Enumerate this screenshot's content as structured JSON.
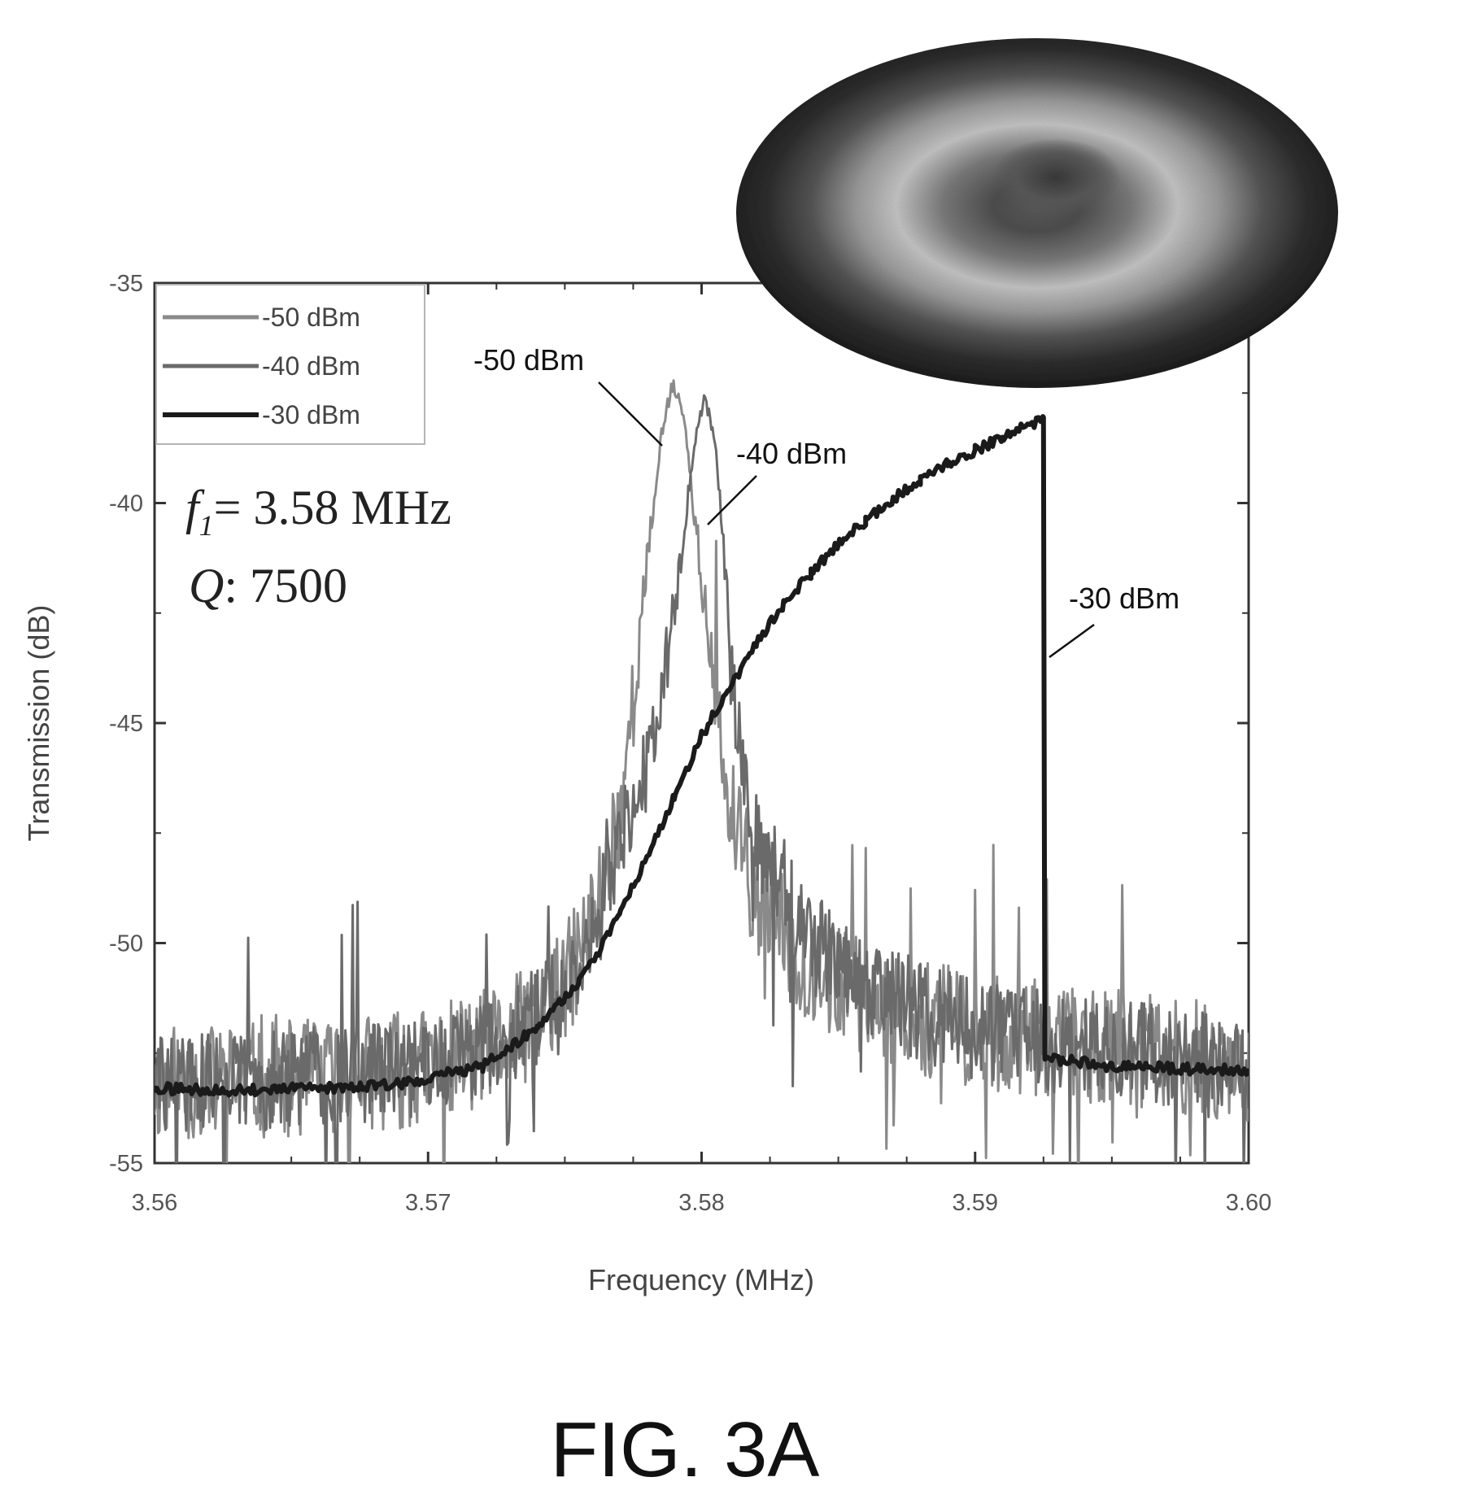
{
  "chart_data": {
    "type": "line",
    "xlabel": "Frequency (MHz)",
    "ylabel": "Transmission (dB)",
    "xlim": [
      3.56,
      3.6
    ],
    "ylim": [
      -55,
      -35
    ],
    "x_ticks": [
      3.56,
      3.57,
      3.58,
      3.59,
      3.6
    ],
    "x_tick_labels": [
      "3.56",
      "3.57",
      "3.58",
      "3.59",
      "3.60"
    ],
    "y_ticks": [
      -35,
      -40,
      -45,
      -50,
      -55
    ],
    "y_tick_labels": [
      "-35",
      "-40",
      "-45",
      "-50",
      "-55"
    ],
    "legend_position": "top-left",
    "grid": false,
    "series": [
      {
        "name": "-50 dBm",
        "color": "#8a8a8a",
        "points": [
          [
            3.56,
            -53.2
          ],
          [
            3.565,
            -53.1
          ],
          [
            3.57,
            -52.8
          ],
          [
            3.573,
            -52.2
          ],
          [
            3.575,
            -51.0
          ],
          [
            3.576,
            -49.5
          ],
          [
            3.577,
            -47.0
          ],
          [
            3.5775,
            -44.5
          ],
          [
            3.578,
            -41.5
          ],
          [
            3.5785,
            -38.6
          ],
          [
            3.5789,
            -37.3
          ],
          [
            3.5793,
            -37.8
          ],
          [
            3.5797,
            -40.0
          ],
          [
            3.5803,
            -43.5
          ],
          [
            3.581,
            -47.0
          ],
          [
            3.582,
            -49.0
          ],
          [
            3.584,
            -50.6
          ],
          [
            3.587,
            -51.5
          ],
          [
            3.59,
            -52.0
          ],
          [
            3.595,
            -52.4
          ],
          [
            3.6,
            -52.8
          ]
        ]
      },
      {
        "name": "-40 dBm",
        "color": "#6a6a6a",
        "points": [
          [
            3.56,
            -53.2
          ],
          [
            3.565,
            -53.1
          ],
          [
            3.57,
            -52.8
          ],
          [
            3.573,
            -52.2
          ],
          [
            3.575,
            -51.0
          ],
          [
            3.576,
            -49.8
          ],
          [
            3.577,
            -48.0
          ],
          [
            3.578,
            -45.8
          ],
          [
            3.5788,
            -43.3
          ],
          [
            3.5793,
            -41.0
          ],
          [
            3.5797,
            -38.8
          ],
          [
            3.5801,
            -37.6
          ],
          [
            3.5805,
            -38.5
          ],
          [
            3.5808,
            -41.0
          ],
          [
            3.5812,
            -44.5
          ],
          [
            3.582,
            -47.5
          ],
          [
            3.584,
            -50.0
          ],
          [
            3.587,
            -51.3
          ],
          [
            3.59,
            -52.0
          ],
          [
            3.595,
            -52.4
          ],
          [
            3.6,
            -52.8
          ]
        ]
      },
      {
        "name": "-30 dBm",
        "color": "#1a1a1a",
        "points": [
          [
            3.56,
            -53.3
          ],
          [
            3.563,
            -53.35
          ],
          [
            3.566,
            -53.3
          ],
          [
            3.569,
            -53.2
          ],
          [
            3.572,
            -52.8
          ],
          [
            3.574,
            -51.9
          ],
          [
            3.5755,
            -50.9
          ],
          [
            3.577,
            -49.4
          ],
          [
            3.578,
            -48.0
          ],
          [
            3.579,
            -46.7
          ],
          [
            3.58,
            -45.3
          ],
          [
            3.581,
            -44.2
          ],
          [
            3.582,
            -43.2
          ],
          [
            3.583,
            -42.3
          ],
          [
            3.584,
            -41.6
          ],
          [
            3.585,
            -40.9
          ],
          [
            3.586,
            -40.4
          ],
          [
            3.587,
            -39.9
          ],
          [
            3.588,
            -39.5
          ],
          [
            3.589,
            -39.1
          ],
          [
            3.59,
            -38.8
          ],
          [
            3.591,
            -38.5
          ],
          [
            3.5925,
            -38.1
          ],
          [
            3.59255,
            -52.6
          ],
          [
            3.595,
            -52.8
          ],
          [
            3.6,
            -52.9
          ]
        ]
      }
    ],
    "annotations": {
      "callout_50": "-50 dBm",
      "callout_40": "-40 dBm",
      "callout_30": "-30 dBm",
      "f_symbol": "f",
      "f_subscript": "1",
      "f_value": "= 3.58 MHz",
      "q_symbol": "Q",
      "q_value": ": 7500"
    }
  },
  "figure_label": "FIG. 3A",
  "inset_image": "disk-mode-shape-icon"
}
